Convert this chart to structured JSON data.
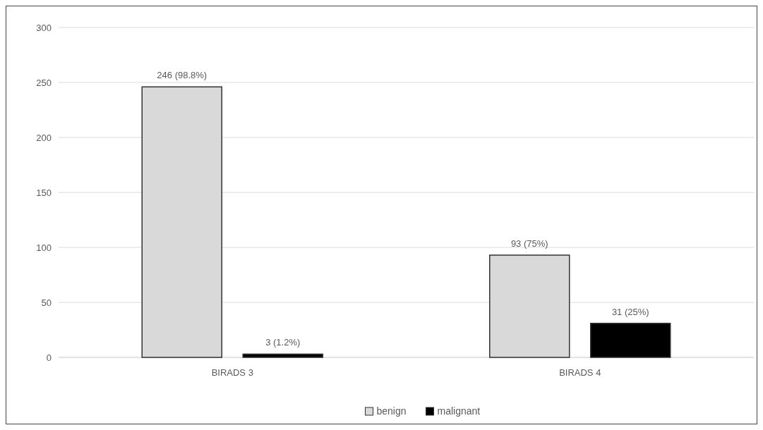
{
  "chart_data": {
    "type": "bar",
    "categories": [
      "BIRADS 3",
      "BIRADS 4"
    ],
    "series": [
      {
        "name": "benign",
        "color": "#d9d9d9",
        "values": [
          246,
          93
        ],
        "value_labels": [
          "246 (98.8%)",
          "93 (75%)"
        ]
      },
      {
        "name": "malignant",
        "color": "#000000",
        "values": [
          3,
          31
        ],
        "value_labels": [
          "3 (1.2%)",
          "31 (25%)"
        ]
      }
    ],
    "ylim": [
      0,
      300
    ],
    "yticks": [
      0,
      50,
      100,
      150,
      200,
      250,
      300
    ],
    "grid": "y",
    "legend": "bottom"
  }
}
